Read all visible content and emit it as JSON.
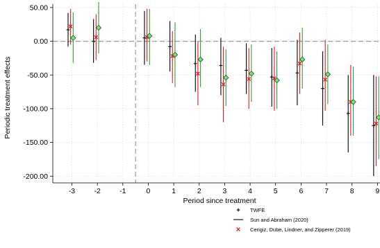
{
  "chart_data": {
    "type": "scatter",
    "title": "",
    "xlabel": "Period since treatment",
    "ylabel": "Periodic treatment effects",
    "xlim": [
      -3.75,
      9.1
    ],
    "ylim": [
      -210,
      55
    ],
    "x_ticks": [
      -3,
      -2,
      -1,
      0,
      1,
      2,
      3,
      4,
      5,
      6,
      7,
      8,
      9
    ],
    "x_tick_labels": [
      "-3",
      "-2",
      "-1",
      "0",
      "1",
      "2",
      "3",
      "4",
      "5",
      "6",
      "7",
      "8",
      "9"
    ],
    "y_ticks": [
      50,
      0,
      -50,
      -100,
      -150,
      -200
    ],
    "y_tick_labels": [
      "50.00",
      "0.00",
      "-50.00",
      "-100.00",
      "-150.00",
      "-200.00"
    ],
    "grid": true,
    "reference_lines": {
      "horizontal_y": 0,
      "vertical_x": -0.5
    },
    "legend_position": "bottom-right",
    "series": [
      {
        "name": "TWFE",
        "color": "#000000",
        "marker": "plus",
        "offset": -0.15,
        "x": [
          -3,
          -2,
          0,
          1,
          2,
          3,
          4,
          5,
          6,
          7,
          8,
          9
        ],
        "y": [
          17,
          0,
          5,
          -8,
          -33,
          -36,
          -43,
          -53,
          -47,
          -70,
          -107,
          -125
        ],
        "ci_low": [
          -8,
          -32,
          -35,
          -45,
          -75,
          -80,
          -78,
          -97,
          -95,
          -125,
          -165,
          -200
        ],
        "ci_high": [
          42,
          33,
          45,
          30,
          10,
          5,
          -3,
          -10,
          2,
          -15,
          -50,
          -50
        ]
      },
      {
        "name": "Sun and Abraham (2020)",
        "color": "#000000",
        "marker": "line",
        "offset": -0.15,
        "x": [],
        "y": []
      },
      {
        "name": "Cengiz, Dube, Lindner, and Zipperer (2019)",
        "color": "#e31a1c",
        "marker": "x",
        "offset": -0.05,
        "x": [
          -3,
          -2,
          0,
          1,
          2,
          3,
          4,
          5,
          6,
          7,
          8,
          9
        ],
        "y": [
          22,
          6,
          6,
          -22,
          -48,
          -64,
          -56,
          -55,
          -33,
          -57,
          -90,
          -122
        ],
        "ci_low": [
          -5,
          -28,
          -30,
          -62,
          -95,
          -120,
          -100,
          -103,
          -78,
          -103,
          -140,
          -185
        ],
        "ci_high": [
          48,
          40,
          48,
          15,
          0,
          -8,
          -10,
          -8,
          13,
          2,
          -35,
          -52
        ]
      },
      {
        "name": "",
        "color": "#2ca02c",
        "marker": "diamond",
        "offset": 0.05,
        "x": [
          -3,
          -2,
          0,
          1,
          2,
          3,
          4,
          5,
          6,
          7,
          8,
          9
        ],
        "y": [
          5,
          20,
          8,
          -20,
          -27,
          -54,
          -48,
          -58,
          -27,
          -49,
          -90,
          -113
        ],
        "ci_low": [
          -32,
          -18,
          -35,
          -68,
          -68,
          -96,
          -90,
          -100,
          -70,
          -93,
          -140,
          -175
        ],
        "ci_high": [
          43,
          58,
          48,
          28,
          18,
          -12,
          -5,
          -15,
          20,
          -5,
          -38,
          -52
        ]
      }
    ]
  }
}
